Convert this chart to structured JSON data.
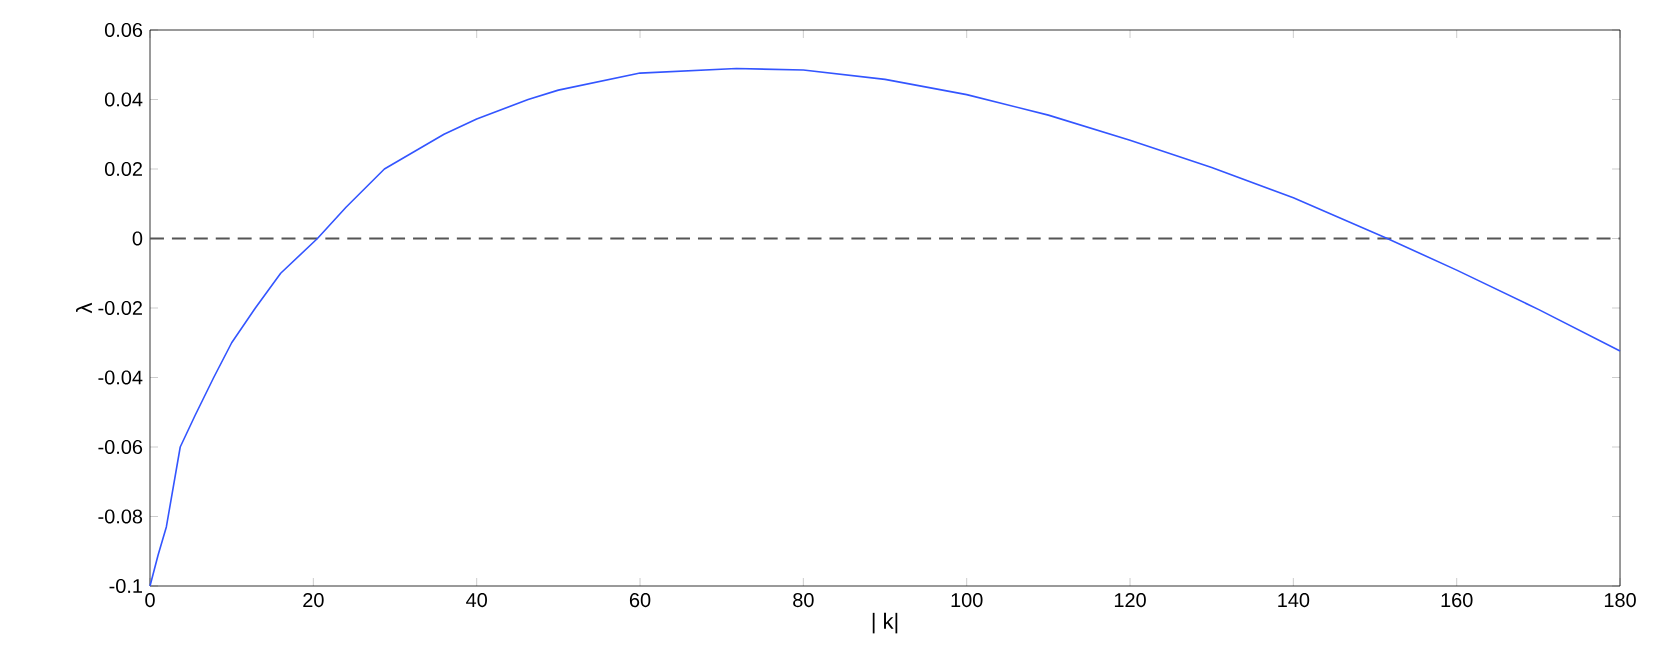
{
  "chart_data": {
    "type": "line",
    "xlabel": "| k|",
    "ylabel": "λ",
    "x": [
      0,
      1,
      2,
      3.7,
      5.5,
      7.8,
      10,
      12.9,
      16,
      20.5,
      24,
      28.7,
      36,
      40,
      46.3,
      50,
      60,
      71.8,
      80,
      90,
      100,
      110,
      120,
      130,
      140,
      151.5,
      160,
      170,
      180
    ],
    "series": [
      {
        "color": "#3355ff",
        "values": [
          -0.1,
          -0.091,
          -0.083,
          -0.06,
          -0.051,
          -0.04,
          -0.03,
          -0.02,
          -0.01,
          0,
          0.009,
          0.02,
          0.03,
          0.0344,
          0.04,
          0.0427,
          0.0476,
          0.0489,
          0.0485,
          0.0458,
          0.0414,
          0.0355,
          0.0283,
          0.0204,
          0.0117,
          0,
          -0.0091,
          -0.0204,
          -0.0324
        ]
      }
    ],
    "xlim": [
      0,
      180
    ],
    "ylim": [
      -0.1,
      0.06
    ],
    "xticks": [
      0,
      20,
      40,
      60,
      80,
      100,
      120,
      140,
      160,
      180
    ],
    "yticks": [
      -0.1,
      -0.08,
      -0.06,
      -0.04,
      -0.02,
      0,
      0.02,
      0.04,
      0.06
    ],
    "ref_lines": [
      {
        "axis": "y",
        "value": 0,
        "color": "#555555",
        "line_style": "dashed"
      }
    ],
    "grid": false
  }
}
